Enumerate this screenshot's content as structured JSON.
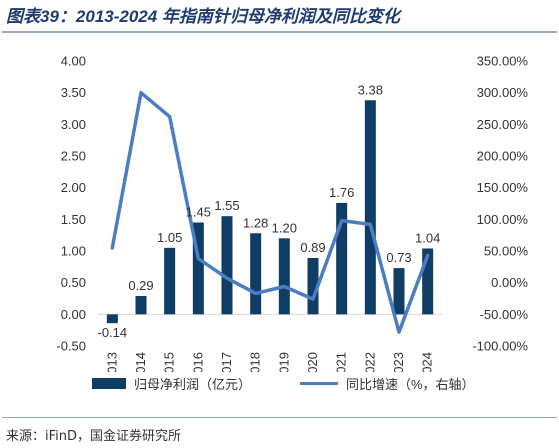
{
  "figure": {
    "title": "图表39：2013-2024 年指南针归母净利润及同比变化",
    "source": "来源：iFinD，国金证券研究所"
  },
  "colors": {
    "bar": "#0f3d64",
    "line": "#4a7ec1",
    "title": "#1f3b70",
    "axis_text": "#333333"
  },
  "legend": {
    "bar_label": "归母净利润（亿元）",
    "line_label": "同比增速（%，右轴）"
  },
  "chart_data": {
    "type": "bar",
    "categories": [
      "2013",
      "2014",
      "2015",
      "2016",
      "2017",
      "2018",
      "2019",
      "2020",
      "2021",
      "2022",
      "2023",
      "2024"
    ],
    "series": [
      {
        "name": "归母净利润（亿元）",
        "type": "bar",
        "axis": "left",
        "values": [
          -0.14,
          0.29,
          1.05,
          1.45,
          1.55,
          1.28,
          1.2,
          0.89,
          1.76,
          3.38,
          0.73,
          1.04
        ],
        "data_labels": [
          "-0.14",
          "0.29",
          "1.05",
          "1.45",
          "1.55",
          "1.28",
          "1.20",
          "0.89",
          "1.76",
          "3.38",
          "0.73",
          "1.04"
        ]
      },
      {
        "name": "同比增速（%，右轴）",
        "type": "line",
        "axis": "right",
        "values": [
          55,
          300,
          262,
          38,
          7,
          -17,
          -6,
          -26,
          98,
          92,
          -78,
          43
        ]
      }
    ],
    "y_left": {
      "min": -0.5,
      "max": 4.0,
      "ticks": [
        "4.00",
        "3.50",
        "3.00",
        "2.50",
        "2.00",
        "1.50",
        "1.00",
        "0.50",
        "0.00",
        "-0.50"
      ]
    },
    "y_right": {
      "min": -100,
      "max": 350,
      "ticks": [
        "350.00%",
        "300.00%",
        "250.00%",
        "200.00%",
        "150.00%",
        "100.00%",
        "50.00%",
        "0.00%",
        "-50.00%",
        "-100.00%"
      ]
    },
    "grid": false,
    "legend_position": "bottom"
  }
}
